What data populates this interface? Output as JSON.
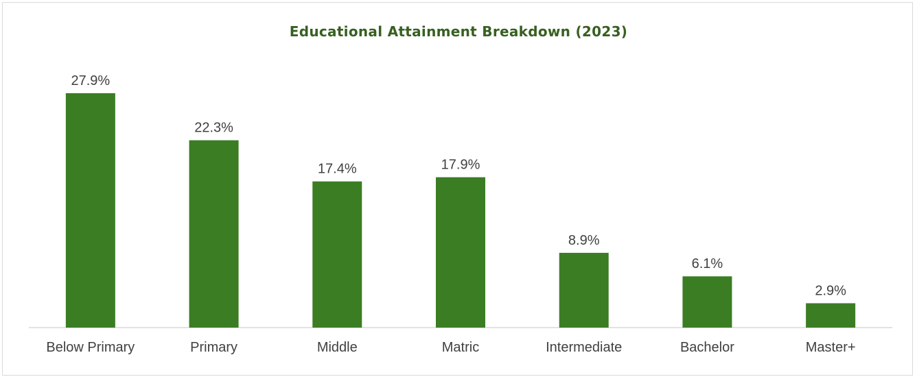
{
  "chart_data": {
    "type": "bar",
    "title": "Educational Attainment Breakdown (2023)",
    "xlabel": "",
    "ylabel": "",
    "categories": [
      "Below Primary",
      "Primary",
      "Middle",
      "Matric",
      "Intermediate",
      "Bachelor",
      "Master+"
    ],
    "values": [
      27.9,
      22.3,
      17.4,
      17.9,
      8.9,
      6.1,
      2.9
    ],
    "value_labels": [
      "27.9%",
      "22.3%",
      "17.4%",
      "17.9%",
      "8.9%",
      "6.1%",
      "2.9%"
    ],
    "ylim": [
      0,
      30
    ],
    "grid": false,
    "legend": "none",
    "colors": {
      "bar": "#3b7d23",
      "title": "#376021",
      "text": "#404040",
      "axis": "#d9d9d9"
    }
  }
}
